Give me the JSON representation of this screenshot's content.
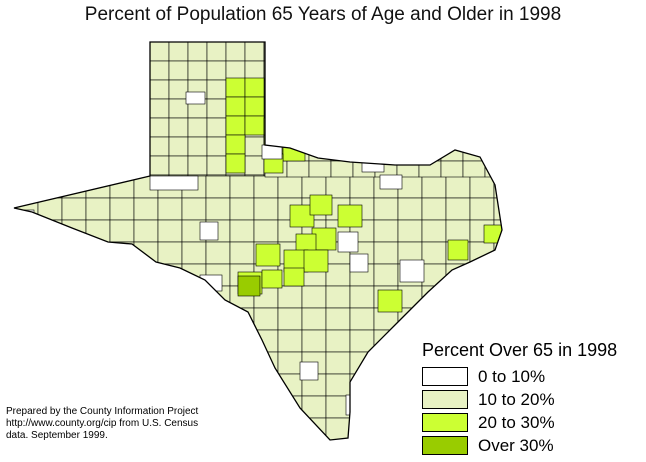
{
  "title": "Percent of Population 65 Years of Age and Older in 1998",
  "legend": {
    "title": "Percent Over 65 in 1998",
    "items": [
      {
        "label": "0 to 10%",
        "color": "#ffffff"
      },
      {
        "label": "10 to 20%",
        "color": "#e8f2c4"
      },
      {
        "label": "20 to 30%",
        "color": "#ccff33"
      },
      {
        "label": "Over 30%",
        "color": "#99cc00"
      }
    ]
  },
  "credit": {
    "line1": "Prepared by the County Information Project",
    "line2": "http://www.county.org/cip from U.S. Census",
    "line3": "data.  September 1999."
  },
  "colors": {
    "outline": "#000000",
    "low": "#ffffff",
    "mid": "#e8f2c4",
    "high": "#ccff33",
    "top": "#99cc00"
  }
}
